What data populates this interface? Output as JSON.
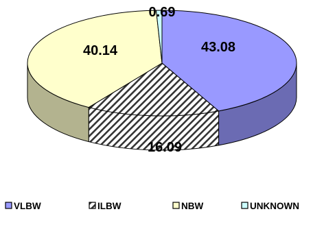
{
  "chart_data": {
    "type": "pie",
    "style": "3d",
    "categories": [
      "VLBW",
      "ILBW",
      "NBW",
      "UNKNOWN"
    ],
    "values": [
      43.08,
      16.09,
      40.14,
      0.69
    ],
    "data_labels": [
      "43.08",
      "16.09",
      "40.14",
      "0.69"
    ],
    "colors": [
      "#9999ff",
      "#ffffff",
      "#ffffcc",
      "#ccffff"
    ],
    "patterns": [
      "solid",
      "diagonal-hatch",
      "solid",
      "solid"
    ],
    "legend": {
      "position": "bottom",
      "items": [
        "VLBW",
        "ILBW",
        "NBW",
        "UNKNOWN"
      ]
    }
  }
}
